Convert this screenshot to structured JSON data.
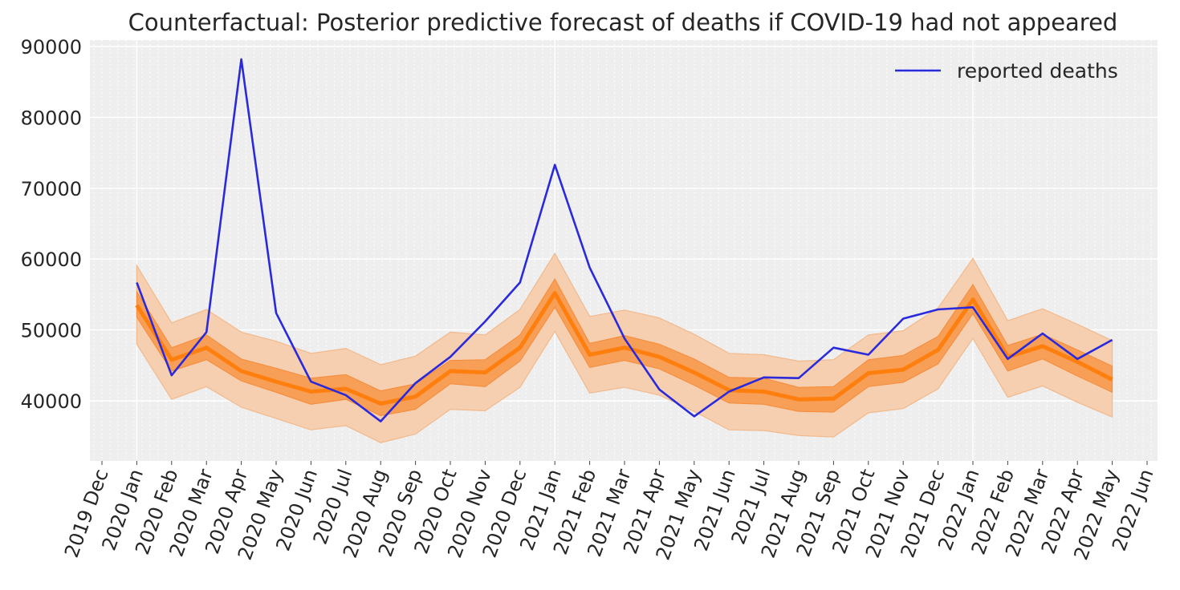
{
  "chart_data": {
    "type": "line",
    "title": "Counterfactual: Posterior predictive forecast of deaths if COVID-19 had not appeared",
    "xlabel": "",
    "ylabel": "",
    "x_tick_labels": [
      "2019 Dec",
      "2020 Jan",
      "2020 Feb",
      "2020 Mar",
      "2020 Apr",
      "2020 May",
      "2020 Jun",
      "2020 Jul",
      "2020 Aug",
      "2020 Sep",
      "2020 Oct",
      "2020 Nov",
      "2020 Dec",
      "2021 Jan",
      "2021 Feb",
      "2021 Mar",
      "2021 Apr",
      "2021 May",
      "2021 Jun",
      "2021 Jul",
      "2021 Aug",
      "2021 Sep",
      "2021 Oct",
      "2021 Nov",
      "2021 Dec",
      "2022 Jan",
      "2022 Feb",
      "2022 Mar",
      "2022 Apr",
      "2022 May",
      "2022 Jun"
    ],
    "y_ticks": [
      40000,
      50000,
      60000,
      70000,
      80000,
      90000
    ],
    "y_tick_labels": [
      "40000",
      "50000",
      "60000",
      "70000",
      "80000",
      "90000"
    ],
    "ylim": [
      31000,
      91000
    ],
    "xlim": [
      "2019 Dec",
      "2022 Jun"
    ],
    "grid": true,
    "legend_position": "top-right",
    "colors": {
      "reported": "#2a2adc",
      "median": "#ff7f0e",
      "band_inner": "#f79e57",
      "band_outer": "#f5cfb0",
      "background": "#eeeeee",
      "grid": "#ffffff"
    },
    "x": [
      "2020 Jan",
      "2020 Feb",
      "2020 Mar",
      "2020 Apr",
      "2020 May",
      "2020 Jun",
      "2020 Jul",
      "2020 Aug",
      "2020 Sep",
      "2020 Oct",
      "2020 Nov",
      "2020 Dec",
      "2021 Jan",
      "2021 Feb",
      "2021 Mar",
      "2021 Apr",
      "2021 May",
      "2021 Jun",
      "2021 Jul",
      "2021 Aug",
      "2021 Sep",
      "2021 Oct",
      "2021 Nov",
      "2021 Dec",
      "2022 Jan",
      "2022 Feb",
      "2022 Mar",
      "2022 Apr",
      "2022 May"
    ],
    "series": [
      {
        "name": "reported deaths",
        "values": [
          56700,
          43600,
          49700,
          88200,
          52400,
          42700,
          40800,
          37100,
          42500,
          46200,
          51200,
          56700,
          73300,
          58800,
          48800,
          41600,
          37800,
          41300,
          43300,
          43200,
          47500,
          46500,
          51600,
          52900,
          53200,
          45900,
          49500,
          45900,
          48600
        ]
      }
    ],
    "forecast": {
      "median": [
        53500,
        45800,
        47500,
        44200,
        42700,
        41300,
        41700,
        39600,
        40600,
        44200,
        44000,
        47500,
        55200,
        46500,
        47500,
        46200,
        44000,
        41500,
        41300,
        40200,
        40300,
        43900,
        44400,
        47200,
        54300,
        46200,
        47700,
        45500,
        43000
      ],
      "inner_lower": [
        51800,
        44200,
        45800,
        42800,
        41200,
        39500,
        40200,
        37900,
        38800,
        42400,
        42000,
        45600,
        53200,
        44700,
        45700,
        44500,
        42200,
        39700,
        39500,
        38500,
        38400,
        42000,
        42600,
        45200,
        52300,
        44200,
        45900,
        43500,
        41200
      ],
      "inner_upper": [
        55400,
        47500,
        49300,
        45900,
        44600,
        43200,
        43700,
        41400,
        42400,
        45700,
        45800,
        49300,
        57200,
        48100,
        49200,
        48000,
        45900,
        43300,
        43200,
        41900,
        42000,
        45800,
        46400,
        49100,
        56400,
        47800,
        49400,
        47200,
        44900
      ],
      "outer_lower": [
        48000,
        40200,
        42000,
        39100,
        37500,
        35900,
        36500,
        34100,
        35300,
        38800,
        38600,
        41900,
        49800,
        41100,
        41900,
        40800,
        38500,
        35900,
        35800,
        35100,
        34900,
        38300,
        38900,
        41700,
        48800,
        40500,
        42100,
        39800,
        37700
      ],
      "outer_upper": [
        59100,
        51000,
        52900,
        49700,
        48400,
        46700,
        47400,
        45100,
        46300,
        49700,
        49300,
        52900,
        60800,
        51900,
        52800,
        51700,
        49400,
        46700,
        46500,
        45600,
        45800,
        49300,
        49900,
        53100,
        60100,
        51300,
        53000,
        50800,
        48500
      ]
    }
  }
}
